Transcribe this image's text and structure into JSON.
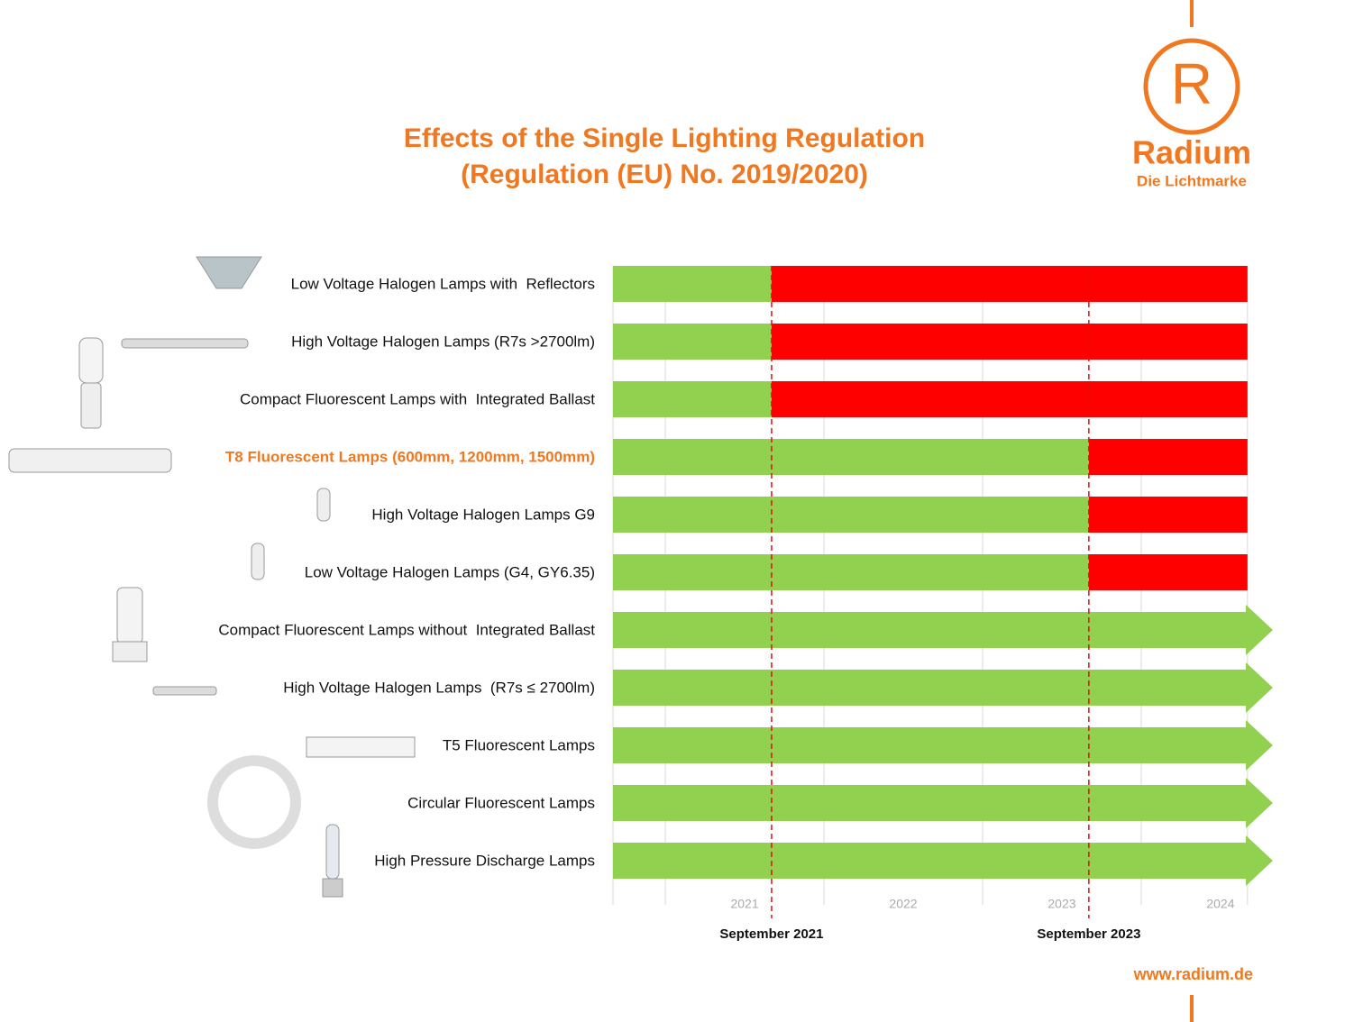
{
  "chart_data": {
    "type": "gantt",
    "title": "Effects of the Single Lighting Regulation",
    "subtitle": "(Regulation (EU) No. 2019/2020)",
    "categories": [
      "Low Voltage Halogen Lamps with  Reflectors",
      "High Voltage Halogen Lamps (R7s >2700lm)",
      "Compact Fluorescent Lamps with  Integrated Ballast",
      "T8 Fluorescent Lamps (600mm, 1200mm, 1500mm)",
      "High Voltage Halogen Lamps G9",
      "Low Voltage Halogen Lamps (G4, GY6.35)",
      "Compact Fluorescent Lamps without  Integrated Ballast",
      "High Voltage Halogen Lamps  (R7s ≤ 2700lm)",
      "T5 Fluorescent Lamps",
      "Circular Fluorescent Lamps",
      "High Pressure Discharge Lamps"
    ],
    "highlight": 3,
    "highlight_color": "#f07820",
    "series": [
      {
        "color": "#92d050",
        "start": [
          2020.67,
          2020.67,
          2020.67,
          2020.67,
          2020.67,
          2020.67,
          2020.67,
          2020.67,
          2020.67,
          2020.67,
          2020.67
        ],
        "end": [
          2021.67,
          2021.67,
          2021.67,
          2023.67,
          2023.67,
          2023.67,
          2024.83,
          2024.83,
          2024.83,
          2024.83,
          2024.83
        ]
      },
      {
        "color": "#ff0000",
        "start": [
          2021.67,
          2021.67,
          2021.67,
          2023.67,
          2023.67,
          2023.67,
          null,
          null,
          null,
          null,
          null
        ],
        "end": [
          2024.67,
          2024.67,
          2024.67,
          2024.67,
          2024.67,
          2024.67,
          null,
          null,
          null,
          null,
          null
        ]
      }
    ],
    "xlim": [
      2020.67,
      2024.83
    ],
    "xgrid": [
      2020.67,
      2021,
      2022,
      2023,
      2024,
      2024.67
    ],
    "xticks": [
      {
        "value": 2021.5,
        "label": "2021"
      },
      {
        "value": 2022.5,
        "label": "2022"
      },
      {
        "value": 2023.5,
        "label": "2023"
      },
      {
        "value": 2024.5,
        "label": "2024"
      }
    ],
    "markers": [
      {
        "value": 2021.67,
        "label": "September 2021"
      },
      {
        "value": 2023.67,
        "label": "September 2023"
      }
    ],
    "marker_color": "#e01010"
  },
  "logo": {
    "letter": "R",
    "name": "Radium",
    "tagline": "Die Lichtmarke"
  },
  "footer": {
    "url": "www.radium.de"
  }
}
